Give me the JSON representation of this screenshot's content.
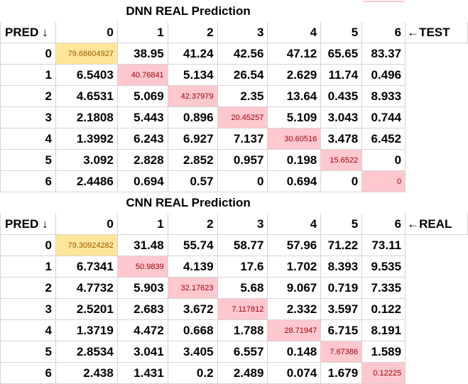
{
  "sections": [
    {
      "title": "DNN REAL Prediction",
      "corner_label": "PRED ↓",
      "columns": [
        "0",
        "1",
        "2",
        "3",
        "4",
        "5",
        "6"
      ],
      "side_note": "←TEST",
      "rows": [
        {
          "label": "0",
          "cells": [
            "79.68604927",
            "38.95",
            "41.24",
            "42.56",
            "47.12",
            "65.65",
            "83.37"
          ]
        },
        {
          "label": "1",
          "cells": [
            "6.5403",
            "40.76841",
            "5.134",
            "26.54",
            "2.629",
            "11.74",
            "0.496"
          ]
        },
        {
          "label": "2",
          "cells": [
            "4.6531",
            "5.069",
            "42.37979",
            "2.35",
            "13.64",
            "0.435",
            "8.933"
          ]
        },
        {
          "label": "3",
          "cells": [
            "2.1808",
            "5.443",
            "0.896",
            "20.45257",
            "5.109",
            "3.043",
            "0.744"
          ]
        },
        {
          "label": "4",
          "cells": [
            "1.3992",
            "6.243",
            "6.927",
            "7.137",
            "30.60516",
            "3.478",
            "6.452"
          ]
        },
        {
          "label": "5",
          "cells": [
            "3.092",
            "2.828",
            "2.852",
            "0.957",
            "0.198",
            "15.6522",
            "0"
          ]
        },
        {
          "label": "6",
          "cells": [
            "2.4486",
            "0.694",
            "0.57",
            "0",
            "0.694",
            "0",
            "0"
          ]
        }
      ]
    },
    {
      "title": "CNN REAL Prediction",
      "corner_label": "PRED ↓",
      "columns": [
        "0",
        "1",
        "2",
        "3",
        "4",
        "5",
        "6"
      ],
      "side_note": "←REAL",
      "rows": [
        {
          "label": "0",
          "cells": [
            "79.30924282",
            "31.48",
            "55.74",
            "58.77",
            "57.96",
            "71.22",
            "73.11"
          ]
        },
        {
          "label": "1",
          "cells": [
            "6.7341",
            "50.9839",
            "4.139",
            "17.6",
            "1.702",
            "8.393",
            "9.535"
          ]
        },
        {
          "label": "2",
          "cells": [
            "4.7732",
            "5.903",
            "32.17623",
            "5.68",
            "9.067",
            "0.719",
            "7.335"
          ]
        },
        {
          "label": "3",
          "cells": [
            "2.5201",
            "2.683",
            "3.672",
            "7.117812",
            "2.332",
            "3.597",
            "0.122"
          ]
        },
        {
          "label": "4",
          "cells": [
            "1.3719",
            "4.472",
            "0.668",
            "1.788",
            "28.71947",
            "6.715",
            "8.191"
          ]
        },
        {
          "label": "5",
          "cells": [
            "2.8534",
            "3.041",
            "3.405",
            "6.557",
            "0.148",
            "7.67386",
            "1.589"
          ]
        },
        {
          "label": "6",
          "cells": [
            "2.438",
            "1.431",
            "0.2",
            "2.489",
            "0.074",
            "1.679",
            "0.12225"
          ]
        }
      ]
    }
  ],
  "colors": {
    "diagonal_first": "#ffe699",
    "diagonal_first_text": "#9c5700",
    "diagonal_other": "#ffc7ce",
    "diagonal_other_text": "#9c0006",
    "gridline": "#d4d4d4"
  }
}
